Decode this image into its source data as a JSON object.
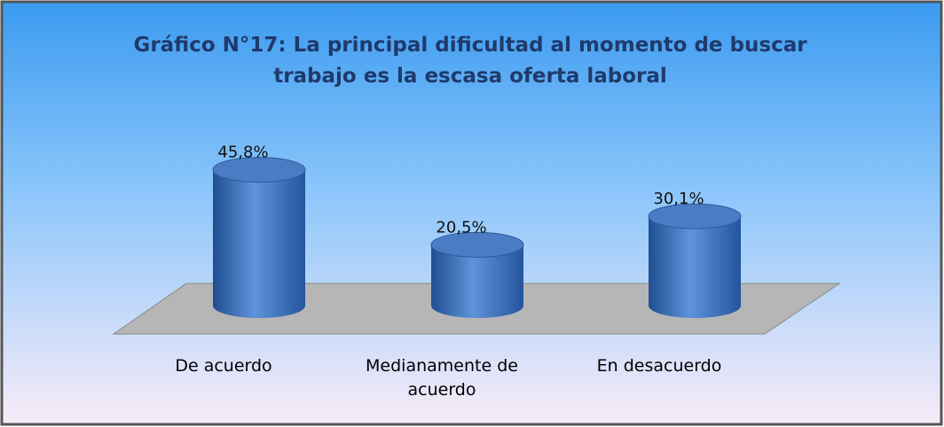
{
  "chart_data": {
    "type": "bar3d",
    "title": "Gráfico N°17: La principal dificultad al momento de buscar trabajo es la escasa oferta laboral",
    "categories": [
      "De acuerdo",
      "Medianamente de acuerdo",
      "En desacuerdo"
    ],
    "values": [
      45.8,
      20.5,
      30.1
    ],
    "value_labels": [
      "45,8%",
      "20,5%",
      "30,1%"
    ],
    "color": "#4a7cc4"
  }
}
